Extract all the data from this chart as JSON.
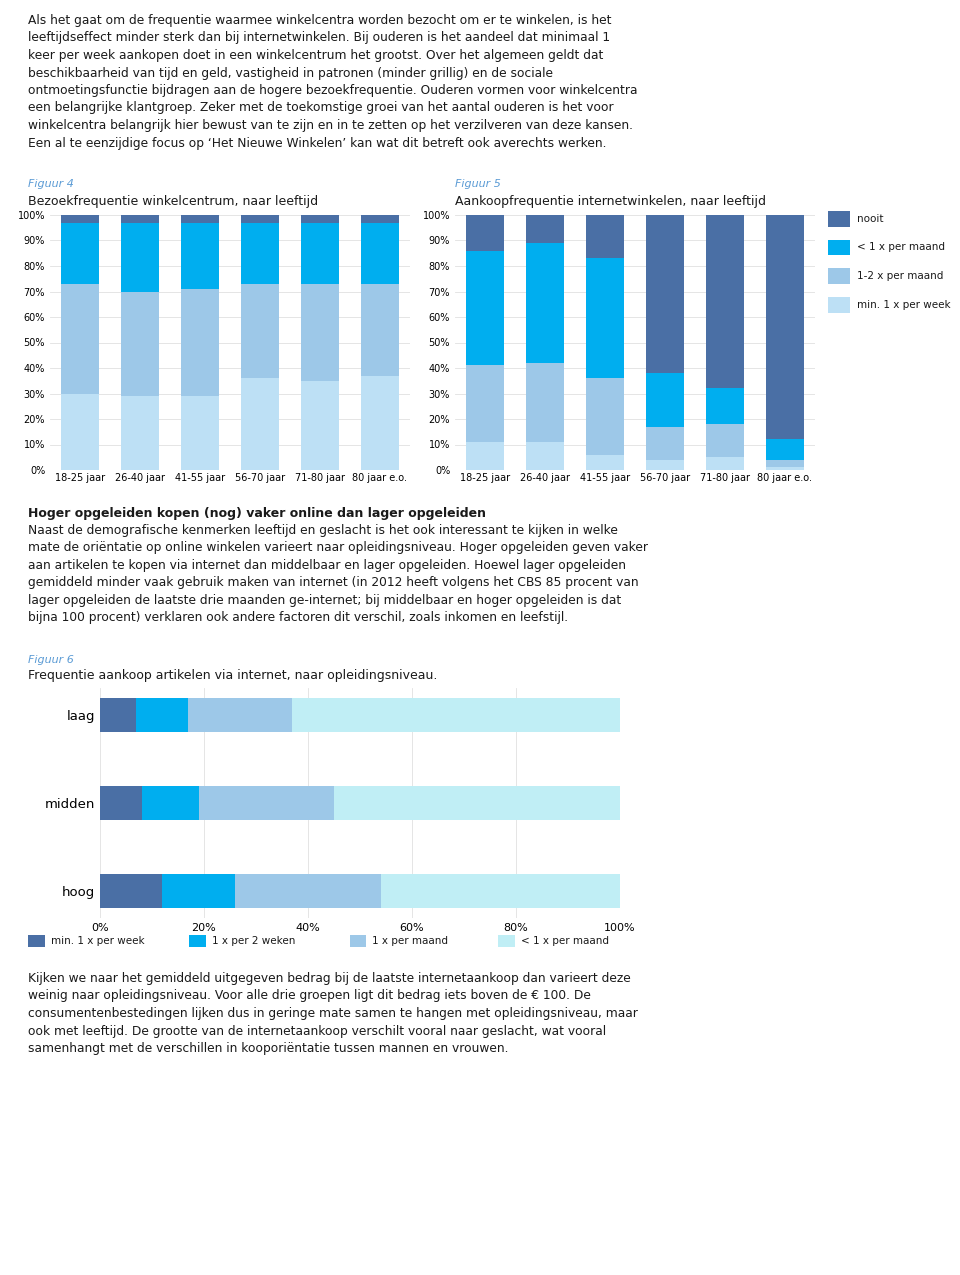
{
  "text_intro": "Als het gaat om de frequentie waarmee winkelcentra worden bezocht om er te winkelen, is het\nleeftijdseffect minder sterk dan bij internetwinkelen. Bij ouderen is het aandeel dat minimaal 1\nkeer per week aankopen doet in een winkelcentrum het grootst. Over het algemeen geldt dat\nbeschikbaarheid van tijd en geld, vastigheid in patronen (minder grillig) en de sociale\nontmoetingsfunctie bijdragen aan de hogere bezoekfrequentie. Ouderen vormen voor winkelcentra\neen belangrijke klantgroep. Zeker met de toekomstige groei van het aantal ouderen is het voor\nwinkelcentra belangrijk hier bewust van te zijn en in te zetten op het verzilveren van deze kansen.\nEen al te eenzijdige focus op ‘Het Nieuwe Winkelen’ kan wat dit betreft ook averechts werken.",
  "fig4_label": "Figuur 4",
  "fig4_title": "Bezoekfrequentie winkelcentrum, naar leeftijd",
  "fig5_label": "Figuur 5",
  "fig5_title": "Aankoopfrequentie internetwinkelen, naar leeftijd",
  "age_groups": [
    "18-25 jaar",
    "26-40 jaar",
    "41-55 jaar",
    "56-70 jaar",
    "71-80 jaar",
    "80 jaar e.o."
  ],
  "legend_labels_fig45": [
    "nooit",
    "< 1 x per maand",
    "1-2 x per maand",
    "min. 1 x per week"
  ],
  "colors_fig45_ordered": [
    "#bde0f5",
    "#9dc8e8",
    "#00aeef",
    "#4a6fa5"
  ],
  "fig4_data_bottom_up": {
    "min1week": [
      30,
      29,
      29,
      36,
      35,
      37
    ],
    "1to2month": [
      43,
      41,
      42,
      37,
      38,
      36
    ],
    "lt1month": [
      24,
      27,
      26,
      24,
      24,
      24
    ],
    "nooit": [
      3,
      3,
      3,
      3,
      3,
      3
    ]
  },
  "fig5_data_bottom_up": {
    "min1week": [
      11,
      11,
      6,
      4,
      5,
      1
    ],
    "1to2month": [
      30,
      31,
      30,
      13,
      13,
      3
    ],
    "lt1month": [
      45,
      47,
      47,
      21,
      14,
      8
    ],
    "nooit": [
      14,
      11,
      17,
      62,
      68,
      88
    ]
  },
  "fig6_label": "Figuur 6",
  "fig6_title": "Frequentie aankoop artikelen via internet, naar opleidingsniveau.",
  "edu_groups": [
    "laag",
    "midden",
    "hoog"
  ],
  "legend_labels_fig6": [
    "min. 1 x per week",
    "1 x per 2 weken",
    "1 x per maand",
    "< 1 x per maand"
  ],
  "colors_fig6": [
    "#4a6fa5",
    "#00aeef",
    "#9dc8e8",
    "#c0eef5"
  ],
  "fig6_data": {
    "min1week": [
      7,
      8,
      12
    ],
    "1per2weeks": [
      10,
      11,
      14
    ],
    "1permonth": [
      20,
      26,
      28
    ],
    "lt1month": [
      63,
      55,
      46
    ]
  },
  "text_header2": "Hoger opgeleiden kopen (nog) vaker online dan lager opgeleiden",
  "text_body2": "Naast de demografische kenmerken leeftijd en geslacht is het ook interessant te kijken in welke\nmate de oriëntatie op online winkelen varieert naar opleidingsniveau. Hoger opgeleiden geven vaker\naan artikelen te kopen via internet dan middelbaar en lager opgeleiden. Hoewel lager opgeleiden\ngemiddeld minder vaak gebruik maken van internet (in 2012 heeft volgens het CBS 85 procent van\nlager opgeleiden de laatste drie maanden ge-internet; bij middelbaar en hoger opgeleiden is dat\nbijna 100 procent) verklaren ook andere factoren dit verschil, zoals inkomen en leefstijl.",
  "text_body3": "Kijken we naar het gemiddeld uitgegeven bedrag bij de laatste internetaankoop dan varieert deze\nweinig naar opleidingsniveau. Voor alle drie groepen ligt dit bedrag iets boven de € 100. De\nconsumentenbestedingen lijken dus in geringe mate samen te hangen met opleidingsniveau, maar\nook met leeftijd. De grootte van de internetaankoop verschilt vooral naar geslacht, wat vooral\nsamenhangt met de verschillen in kooporiëntatie tussen mannen en vrouwen.",
  "background_color": "#ffffff",
  "text_color": "#1a1a1a",
  "fig_label_color": "#5b9bd5",
  "grid_color": "#e0e0e0"
}
